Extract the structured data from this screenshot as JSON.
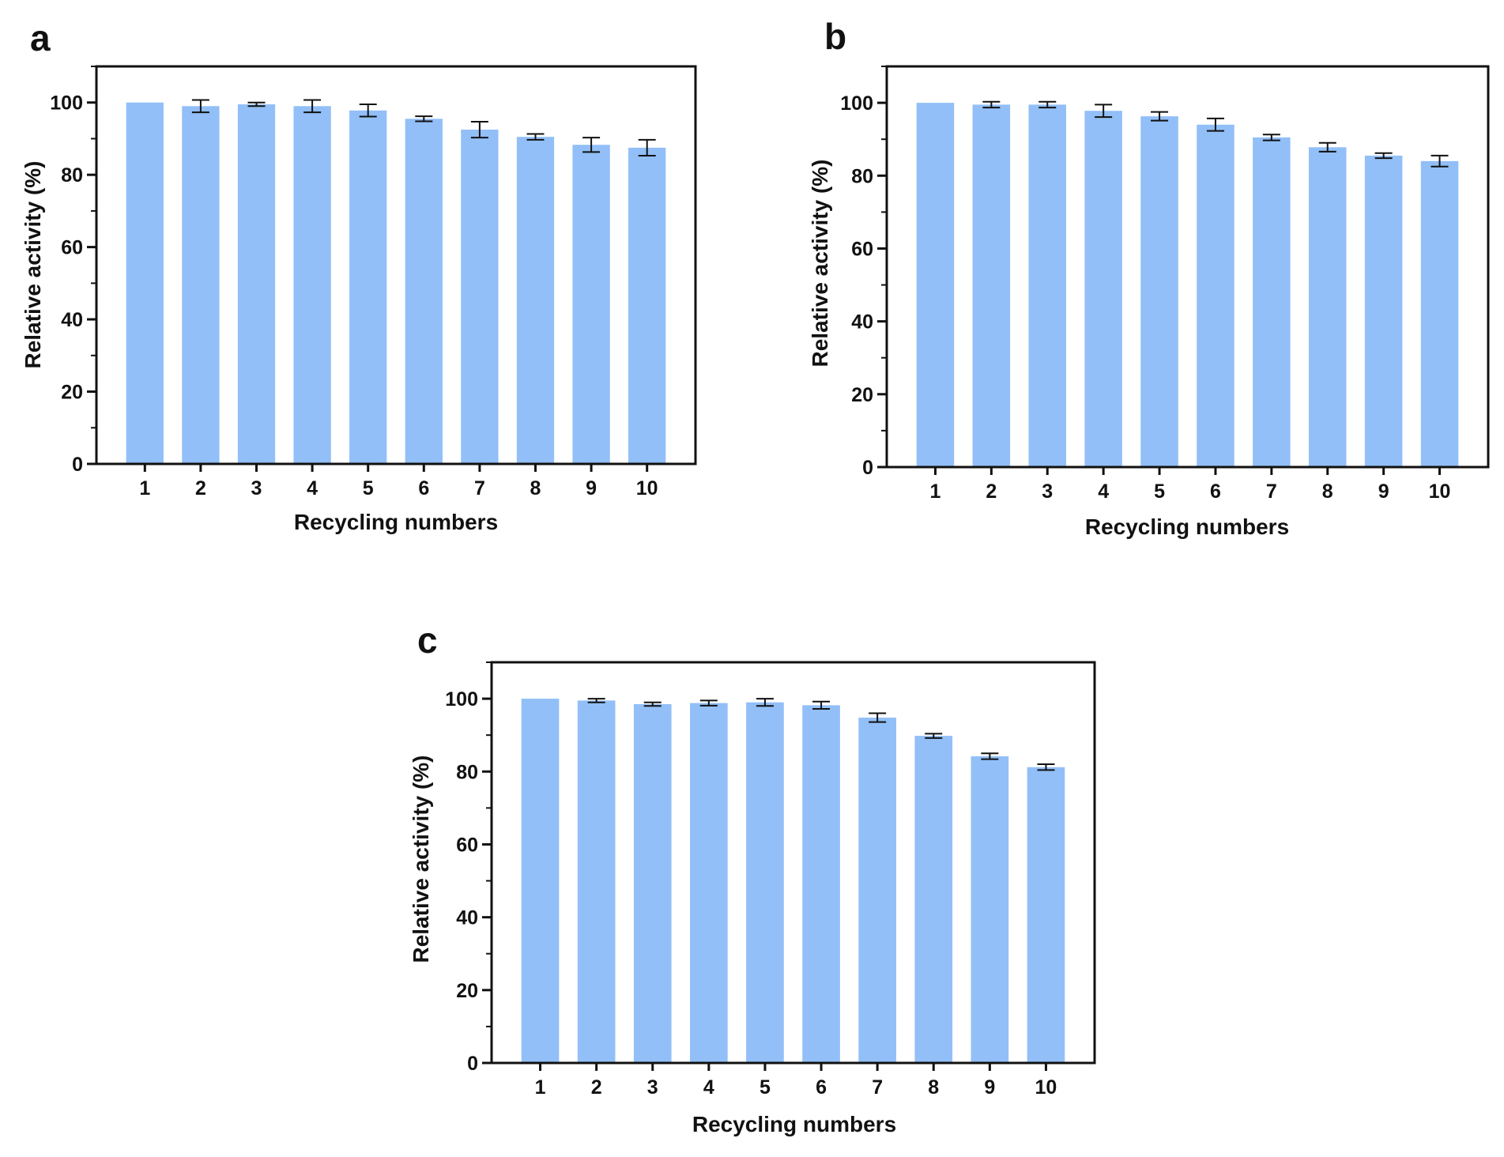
{
  "figure": {
    "background": "#ffffff"
  },
  "style": {
    "bar_color": "#92bff7",
    "axis_color": "#111111",
    "error_color": "#111111"
  },
  "chart_data": [
    {
      "panel": "a",
      "type": "bar",
      "categories": [
        "1",
        "2",
        "3",
        "4",
        "5",
        "6",
        "7",
        "8",
        "9",
        "10"
      ],
      "values": [
        100,
        99,
        99.5,
        99,
        97.8,
        95.5,
        92.5,
        90.5,
        88.3,
        87.5
      ],
      "errors": [
        0,
        1.7,
        0.5,
        1.7,
        1.7,
        0.7,
        2.2,
        0.8,
        2.0,
        2.2
      ],
      "xlabel": "Recycling numbers",
      "ylabel": "Relative activity (%)",
      "ylim": [
        0,
        110
      ],
      "yticks": [
        0,
        20,
        40,
        60,
        80,
        100
      ],
      "ytick_labels": [
        "0",
        "20",
        "40",
        "60",
        "80",
        "100"
      ]
    },
    {
      "panel": "b",
      "type": "bar",
      "categories": [
        "1",
        "2",
        "3",
        "4",
        "5",
        "6",
        "7",
        "8",
        "9",
        "10"
      ],
      "values": [
        100,
        99.5,
        99.5,
        97.8,
        96.3,
        94,
        90.5,
        87.8,
        85.5,
        84
      ],
      "errors": [
        0,
        0.8,
        0.8,
        1.7,
        1.2,
        1.7,
        0.8,
        1.2,
        0.7,
        1.5
      ],
      "xlabel": "Recycling numbers",
      "ylabel": "Relative activity (%)",
      "ylim": [
        0,
        110
      ],
      "yticks": [
        0,
        20,
        40,
        60,
        80,
        100
      ],
      "ytick_labels": [
        "0",
        "20",
        "40",
        "60",
        "80",
        "100"
      ]
    },
    {
      "panel": "c",
      "type": "bar",
      "categories": [
        "1",
        "2",
        "3",
        "4",
        "5",
        "6",
        "7",
        "8",
        "9",
        "10"
      ],
      "values": [
        100,
        99.5,
        98.5,
        98.8,
        99,
        98.2,
        94.8,
        89.8,
        84.2,
        81.2
      ],
      "errors": [
        0,
        0.5,
        0.5,
        0.7,
        1.0,
        1.0,
        1.2,
        0.6,
        0.8,
        0.8
      ],
      "xlabel": "Recycling numbers",
      "ylabel": "Relative activity (%)",
      "ylim": [
        0,
        110
      ],
      "yticks": [
        0,
        20,
        40,
        60,
        80,
        100
      ],
      "ytick_labels": [
        "0",
        "20",
        "40",
        "60",
        "80",
        "100"
      ]
    }
  ]
}
